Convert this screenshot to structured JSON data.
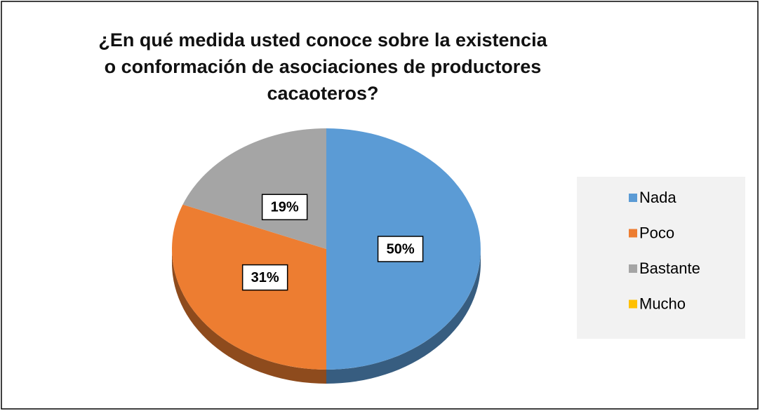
{
  "chart_data": {
    "type": "pie",
    "title": "¿En qué medida usted conoce sobre la existencia o conformación de asociaciones de productores cacaoteros?",
    "categories": [
      "Nada",
      "Poco",
      "Bastante",
      "Mucho"
    ],
    "values": [
      50,
      31,
      19,
      0
    ],
    "value_labels": [
      "50%",
      "31%",
      "19%",
      null
    ],
    "colors": [
      "#5b9bd5",
      "#ed7d31",
      "#a5a5a5",
      "#ffc000"
    ],
    "legend": "right"
  }
}
